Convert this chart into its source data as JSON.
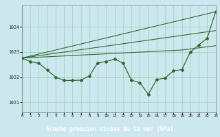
{
  "title": "Graphe pression niveau de la mer (hPa)",
  "bg_color": "#cce8ee",
  "plot_bg_color": "#cce8ee",
  "label_bg_color": "#336633",
  "label_text_color": "#ffffff",
  "grid_color": "#99ccbb",
  "line_color": "#2d6a2d",
  "xlim": [
    0,
    23
  ],
  "ylim": [
    1020.6,
    1024.85
  ],
  "yticks": [
    1021,
    1022,
    1023,
    1024
  ],
  "xticks": [
    0,
    1,
    2,
    3,
    4,
    5,
    6,
    7,
    8,
    9,
    10,
    11,
    12,
    13,
    14,
    15,
    16,
    17,
    18,
    19,
    20,
    21,
    22,
    23
  ],
  "main_x": [
    0,
    1,
    2,
    3,
    4,
    5,
    6,
    7,
    8,
    9,
    10,
    11,
    12,
    13,
    14,
    15,
    16,
    17,
    18,
    19,
    20,
    21,
    22,
    23
  ],
  "main_y": [
    1022.76,
    1022.62,
    1022.55,
    1022.28,
    1022.0,
    1021.87,
    1021.87,
    1021.88,
    1022.05,
    1022.57,
    1022.62,
    1022.72,
    1022.56,
    1021.88,
    1021.78,
    1021.32,
    1021.9,
    1021.97,
    1022.25,
    1022.3,
    1023.0,
    1023.28,
    1023.55,
    1024.6
  ],
  "trend1_x": [
    0,
    23
  ],
  "trend1_y": [
    1022.76,
    1024.6
  ],
  "trend2_x": [
    0,
    23
  ],
  "trend2_y": [
    1022.76,
    1023.85
  ],
  "trend3_x": [
    0,
    19,
    23
  ],
  "trend3_y": [
    1022.76,
    1023.08,
    1023.25
  ]
}
